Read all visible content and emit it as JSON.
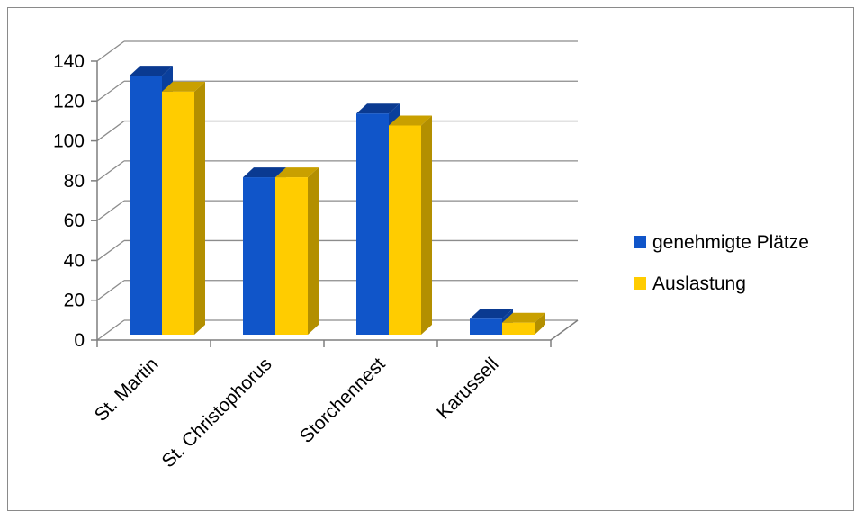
{
  "chart_data": {
    "type": "bar",
    "style": "3d-clustered-column",
    "categories": [
      "St. Martin",
      "St. Christophorus",
      "Storchennest",
      "Karussell"
    ],
    "series": [
      {
        "name": "genehmigte Plätze",
        "values": [
          130,
          79,
          111,
          8
        ]
      },
      {
        "name": "Auslastung",
        "values": [
          122,
          79,
          105,
          6
        ]
      }
    ],
    "ylim": [
      0,
      140
    ],
    "yticks": [
      0,
      20,
      40,
      60,
      80,
      100,
      120,
      140
    ],
    "grid": true,
    "legend_position": "right",
    "colors": {
      "series_front": [
        "#1055C9",
        "#FFCC00"
      ],
      "series_top": [
        "#0A3A91",
        "#C9A000"
      ],
      "series_side": [
        "#0A3F9C",
        "#B38F00"
      ],
      "grid": "#8c8c8c",
      "axis": "#7f7f7f"
    }
  }
}
